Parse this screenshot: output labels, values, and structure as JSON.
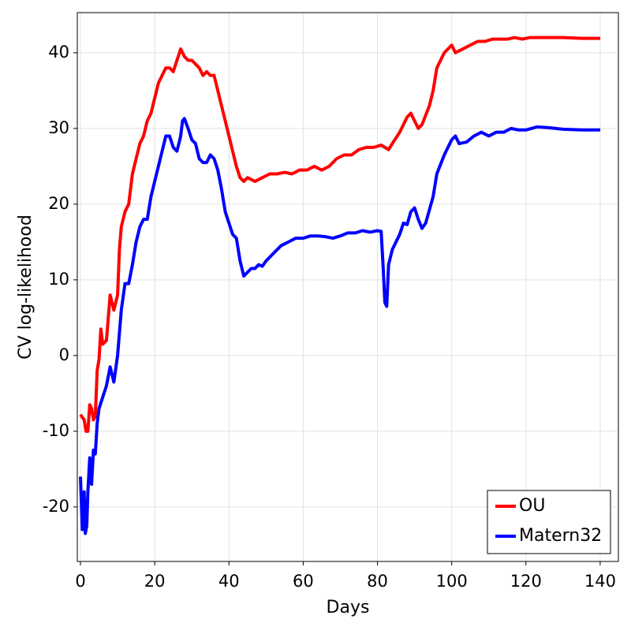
{
  "chart_data": {
    "type": "line",
    "x_label": "Days",
    "y_label": "CV log-likelihood",
    "xlim": [
      -0.85,
      144.9
    ],
    "ylim": [
      -27.2,
      45.3
    ],
    "xticks": [
      0,
      20,
      40,
      60,
      80,
      100,
      120,
      140
    ],
    "yticks": [
      -20,
      -10,
      0,
      10,
      20,
      30,
      40
    ],
    "grid": true,
    "legend_position": "lower right",
    "series": [
      {
        "name": "OU",
        "color": "#ff0000",
        "x": [
          0,
          1,
          1.5,
          2,
          2.5,
          3,
          3.5,
          4,
          4.5,
          5,
          5.5,
          6,
          7,
          8,
          9,
          10,
          10.5,
          11,
          12,
          13,
          14,
          15,
          16,
          17,
          18,
          19,
          20,
          21,
          22,
          23,
          24,
          25,
          26,
          27,
          28,
          29,
          30,
          31,
          32,
          33,
          34,
          35,
          36,
          37,
          38,
          39,
          40,
          41,
          42,
          43,
          44,
          45,
          47,
          49,
          51,
          53,
          55,
          57,
          59,
          61,
          63,
          65,
          67,
          69,
          71,
          73,
          75,
          77,
          79,
          81,
          82,
          83,
          84,
          86,
          88,
          89,
          90,
          91,
          92,
          94,
          95,
          96,
          98,
          100,
          101,
          103,
          105,
          107,
          109,
          111,
          113,
          115,
          117,
          119,
          121,
          125,
          130,
          135,
          140
        ],
        "values": [
          -7.8,
          -8.5,
          -10,
          -10,
          -6.5,
          -7,
          -8.5,
          -8,
          -2,
          -0.5,
          3.5,
          1.5,
          2,
          8,
          6,
          8,
          14,
          17,
          19,
          20,
          24,
          26,
          28,
          29,
          31,
          32,
          34,
          36,
          37,
          38,
          38,
          37.5,
          39,
          40.5,
          39.5,
          39,
          39,
          38.5,
          38,
          37,
          37.5,
          37,
          37,
          35,
          33,
          31,
          29,
          27,
          25,
          23.5,
          23,
          23.5,
          23,
          23.5,
          24,
          24,
          24.2,
          24,
          24.5,
          24.5,
          25,
          24.5,
          25,
          26,
          26.5,
          26.5,
          27.2,
          27.5,
          27.5,
          27.8,
          27.5,
          27.2,
          28,
          29.5,
          31.5,
          32,
          31,
          30,
          30.5,
          33,
          35,
          38,
          40,
          41,
          40,
          40.5,
          41,
          41.5,
          41.5,
          41.8,
          41.8,
          41.8,
          42,
          41.8,
          42,
          42,
          42,
          41.9,
          41.9
        ]
      },
      {
        "name": "Matern32",
        "color": "#0000ff",
        "x": [
          0,
          0.5,
          1,
          1.3,
          1.7,
          2,
          2.5,
          3,
          3.5,
          4,
          4.5,
          5,
          6,
          7,
          8,
          9,
          10,
          11,
          12,
          13,
          14,
          15,
          16,
          17,
          18,
          19,
          20,
          21,
          22,
          23,
          24,
          25,
          26,
          27,
          27.5,
          28,
          29,
          30,
          31,
          32,
          33,
          34,
          35,
          36,
          37,
          38,
          39,
          40,
          41,
          42,
          43,
          44,
          45,
          46,
          47,
          48,
          49,
          50,
          52,
          54,
          56,
          58,
          60,
          62,
          64,
          66,
          68,
          70,
          72,
          74,
          76,
          78,
          80,
          81,
          81.5,
          82,
          82.5,
          83,
          84,
          85,
          86,
          87,
          88,
          89,
          90,
          91,
          92,
          93,
          95,
          96,
          98,
          100,
          101,
          102,
          104,
          106,
          108,
          110,
          112,
          114,
          116,
          118,
          120,
          123,
          126,
          130,
          135,
          140
        ],
        "values": [
          -16,
          -23,
          -18,
          -23.5,
          -22.5,
          -18,
          -13.5,
          -17,
          -12.5,
          -13,
          -9,
          -7,
          -5.5,
          -4,
          -1.5,
          -3.5,
          0,
          6,
          9.5,
          9.5,
          12,
          15,
          17,
          18,
          18,
          21,
          23,
          25,
          27,
          29,
          29,
          27.5,
          27,
          29,
          31,
          31.3,
          30,
          28.5,
          28,
          26,
          25.5,
          25.5,
          26.5,
          26,
          24.5,
          22,
          19,
          17.5,
          16,
          15.5,
          12.5,
          10.5,
          11,
          11.5,
          11.5,
          12,
          11.8,
          12.5,
          13.5,
          14.5,
          15,
          15.5,
          15.5,
          15.8,
          15.8,
          15.7,
          15.5,
          15.8,
          16.2,
          16.2,
          16.5,
          16.3,
          16.5,
          16.4,
          12,
          7,
          6.5,
          12,
          14,
          15,
          16,
          17.5,
          17.3,
          19,
          19.5,
          18,
          16.8,
          17.5,
          21,
          24,
          26.5,
          28.5,
          29,
          28,
          28.2,
          29,
          29.5,
          29,
          29.5,
          29.5,
          30,
          29.8,
          29.8,
          30.2,
          30.1,
          29.9,
          29.8,
          29.8
        ]
      }
    ]
  }
}
